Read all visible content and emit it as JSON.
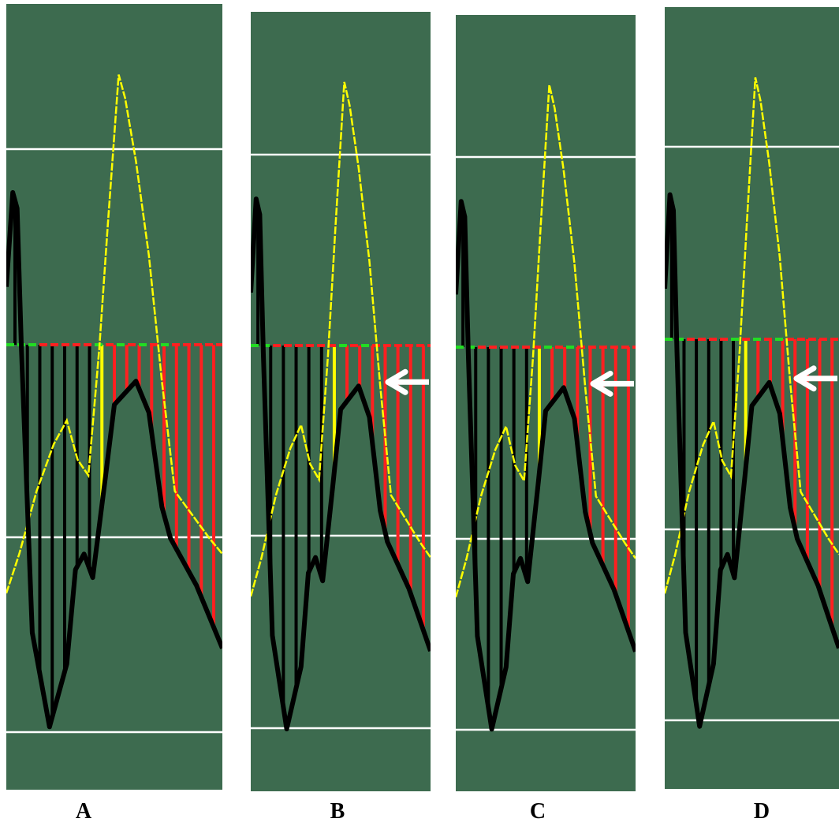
{
  "colors": {
    "background": "#ffffff",
    "panel": "#3d6b4f",
    "grid_line": "#ffffff",
    "trace_black": "#000000",
    "trace_yellow": "#ffff00",
    "bar_red": "#ff2020",
    "bar_green": "#22dd22",
    "arrow": "#ffffff"
  },
  "icons": {
    "arrow": "left-arrow-icon"
  },
  "panels": [
    {
      "label": "A",
      "has_arrow": false
    },
    {
      "label": "B",
      "has_arrow": true
    },
    {
      "label": "C",
      "has_arrow": true
    },
    {
      "label": "D",
      "has_arrow": true
    }
  ]
}
